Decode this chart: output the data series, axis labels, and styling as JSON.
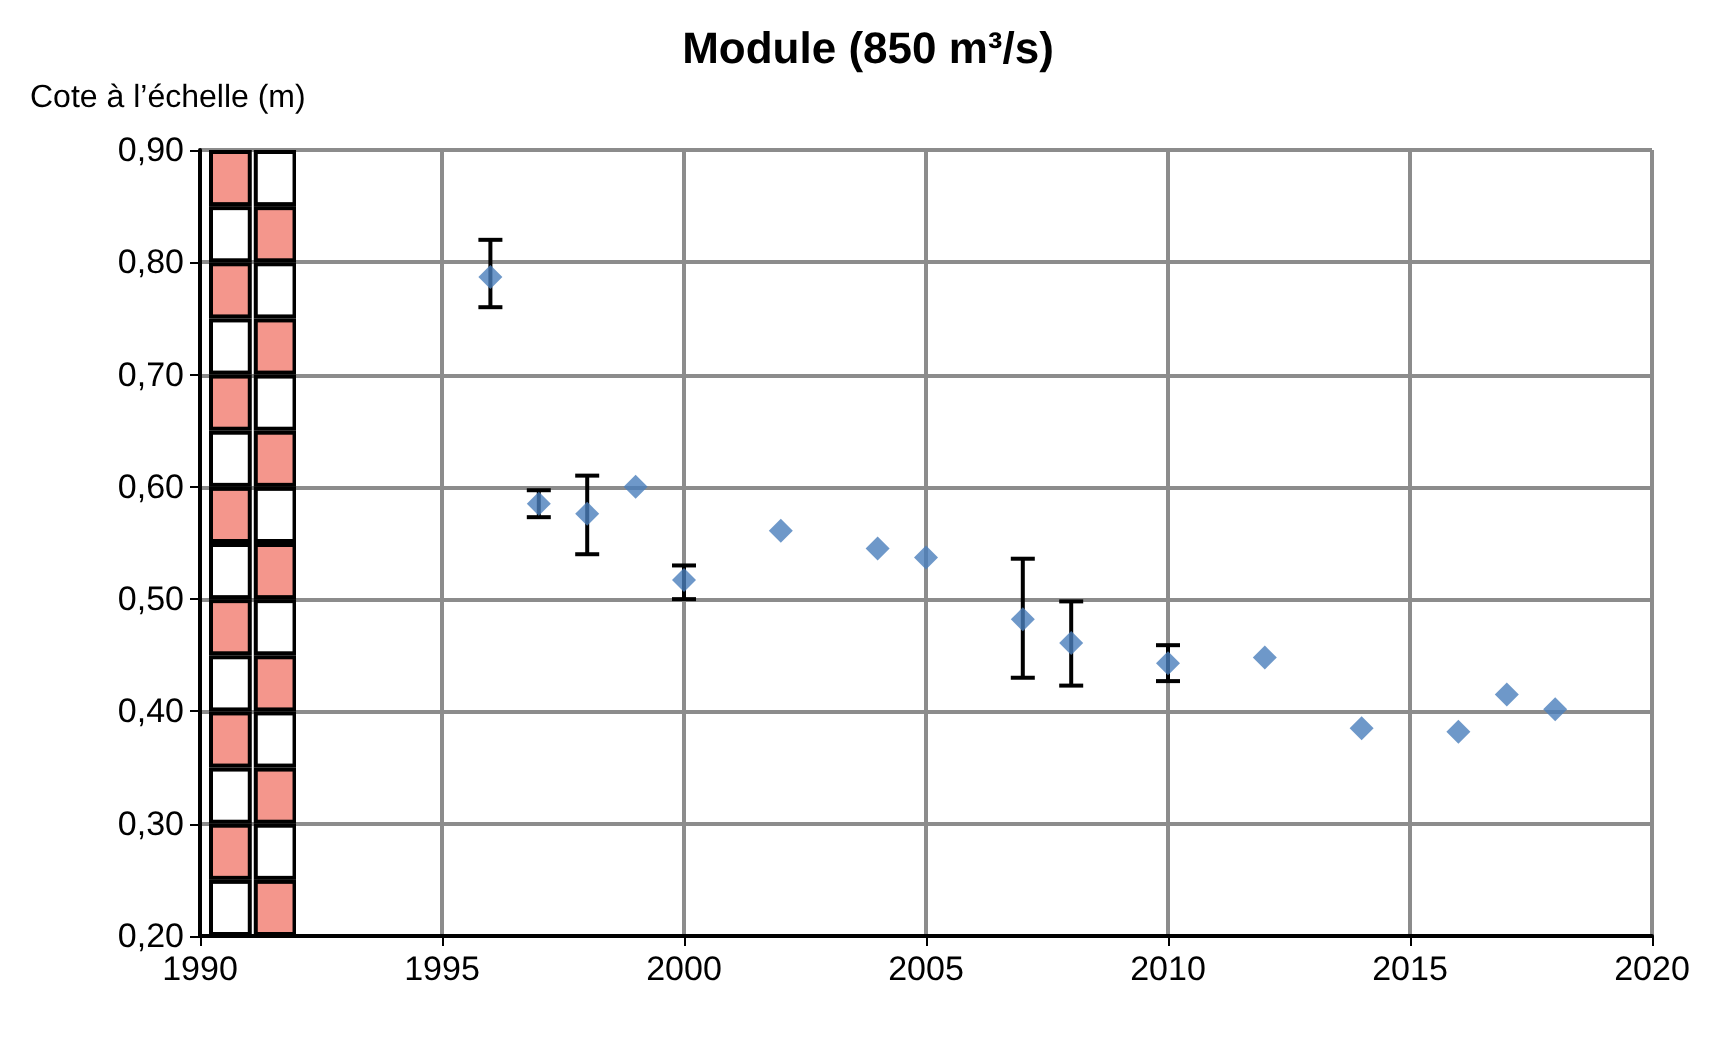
{
  "chart_data": {
    "type": "scatter",
    "title": "Module (850 m³/s)",
    "ylabel": "Cote à l’échelle (m)",
    "x": [
      1996,
      1997,
      1998,
      1999,
      2000,
      2002,
      2004,
      2005,
      2007,
      2008,
      2010,
      2012,
      2014,
      2016,
      2017,
      2018
    ],
    "series": [
      {
        "color": "#4a7ebb",
        "values": [
          0.787,
          0.585,
          0.576,
          0.6,
          0.517,
          0.561,
          0.545,
          0.537,
          0.482,
          0.461,
          0.443,
          0.448,
          0.385,
          0.382,
          0.415,
          0.402
        ],
        "errors": [
          [
            0.76,
            0.82
          ],
          0.012,
          [
            0.54,
            0.61
          ],
          null,
          [
            0.5,
            0.53
          ],
          null,
          null,
          null,
          [
            0.43,
            0.536
          ],
          [
            0.423,
            0.498
          ],
          [
            0.427,
            0.459
          ],
          null,
          null,
          null,
          null,
          null
        ]
      }
    ],
    "xlim": [
      1990,
      2020
    ],
    "xticks": [
      1990,
      1995,
      2000,
      2005,
      2010,
      2015,
      2020
    ],
    "ylim": [
      0.2,
      0.9
    ],
    "yticks": [
      {
        "value": 0.2,
        "label": "0,20"
      },
      {
        "value": 0.3,
        "label": "0,30"
      },
      {
        "value": 0.4,
        "label": "0,40"
      },
      {
        "value": 0.5,
        "label": "0,50"
      },
      {
        "value": 0.6,
        "label": "0,60"
      },
      {
        "value": 0.7,
        "label": "0,70"
      },
      {
        "value": 0.8,
        "label": "0,80"
      },
      {
        "value": 0.9,
        "label": "0,90"
      }
    ],
    "grid": true,
    "marker": "diamond"
  }
}
